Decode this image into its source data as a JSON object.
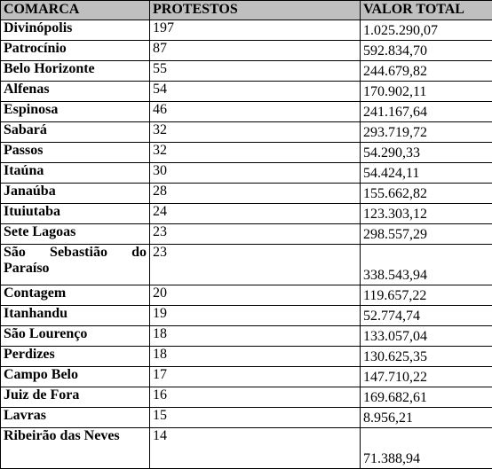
{
  "table": {
    "headers": [
      "COMARCA",
      "PROTESTOS",
      "VALOR TOTAL"
    ],
    "rows": [
      {
        "comarca": "Divinópolis",
        "protestos": "197",
        "valor": "1.025.290,07"
      },
      {
        "comarca": "Patrocínio",
        "protestos": "87",
        "valor": "592.834,70"
      },
      {
        "comarca": "Belo Horizonte",
        "protestos": "55",
        "valor": "244.679,82"
      },
      {
        "comarca": "Alfenas",
        "protestos": "54",
        "valor": "170.902,11"
      },
      {
        "comarca": "Espinosa",
        "protestos": "46",
        "valor": "241.167,64"
      },
      {
        "comarca": "Sabará",
        "protestos": "32",
        "valor": "293.719,72"
      },
      {
        "comarca": "Passos",
        "protestos": "32",
        "valor": "54.290,33"
      },
      {
        "comarca": "Itaúna",
        "protestos": "30",
        "valor": "54.424,11"
      },
      {
        "comarca": "Janaúba",
        "protestos": "28",
        "valor": "155.662,82"
      },
      {
        "comarca": "Ituiutaba",
        "protestos": "24",
        "valor": "123.303,12"
      },
      {
        "comarca": "Sete Lagoas",
        "protestos": "23",
        "valor": "298.557,29"
      },
      {
        "comarca": "São Sebastião do Paraíso",
        "protestos": "23",
        "valor": "338.543,94"
      },
      {
        "comarca": "Contagem",
        "protestos": "20",
        "valor": "119.657,22"
      },
      {
        "comarca": "Itanhandu",
        "protestos": "19",
        "valor": "52.774,74"
      },
      {
        "comarca": "São Lourenço",
        "protestos": "18",
        "valor": "133.057,04"
      },
      {
        "comarca": "Perdizes",
        "protestos": "18",
        "valor": "130.625,35"
      },
      {
        "comarca": "Campo Belo",
        "protestos": "17",
        "valor": "147.710,22"
      },
      {
        "comarca": "Juiz de Fora",
        "protestos": "16",
        "valor": "169.682,61"
      },
      {
        "comarca": "Lavras",
        "protestos": "15",
        "valor": "8.956,21"
      },
      {
        "comarca": "Ribeirão das Neves",
        "protestos": "14",
        "valor": "71.388,94"
      }
    ]
  }
}
